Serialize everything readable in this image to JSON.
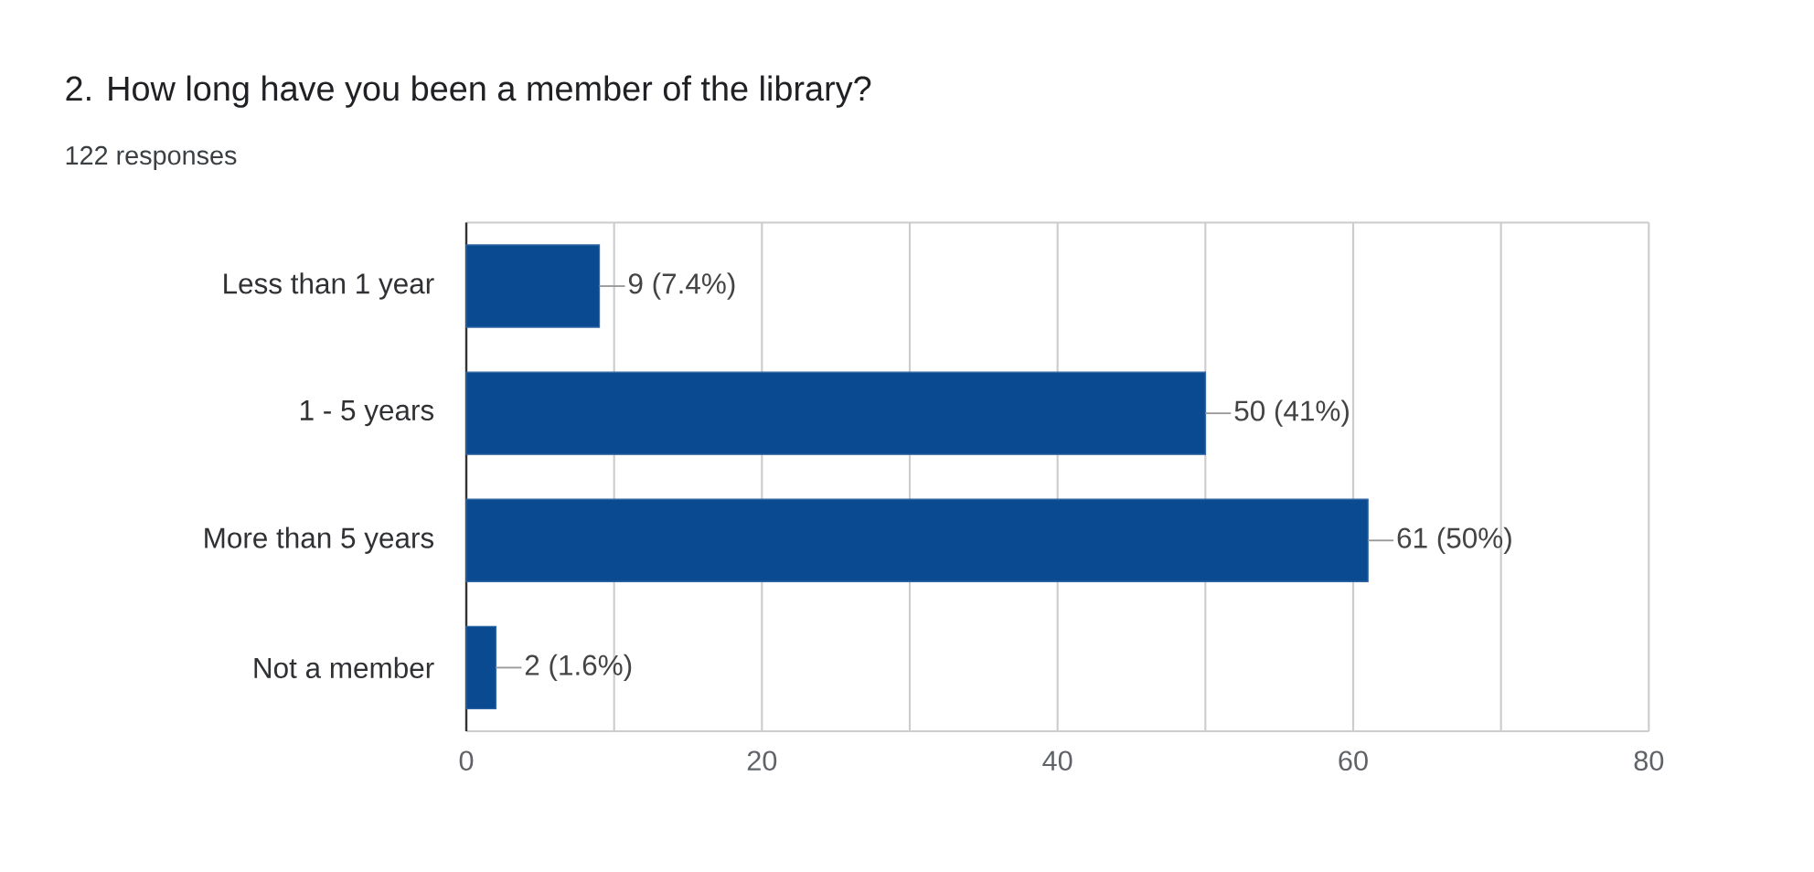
{
  "chart_data": {
    "type": "bar",
    "orientation": "horizontal",
    "title": "2. How long have you been a member of the library?",
    "subtitle": "122 responses",
    "categories": [
      "Less than 1 year",
      "1 - 5 years",
      "More than 5 years",
      "Not a member"
    ],
    "values": [
      9,
      50,
      61,
      2
    ],
    "color": "#0a4a91",
    "value_labels": [
      "9 (7.4%)",
      "50 (41%)",
      "61 (50%)",
      "2 (1.6%)"
    ],
    "xlim": [
      0,
      80
    ],
    "xticks": [
      0,
      {
        "value": 10,
        "label": null
      },
      20,
      {
        "value": 30,
        "label": null
      },
      40,
      {
        "value": 50,
        "label": null
      },
      60,
      {
        "value": 70,
        "label": null
      },
      80
    ],
    "grid": "x"
  }
}
